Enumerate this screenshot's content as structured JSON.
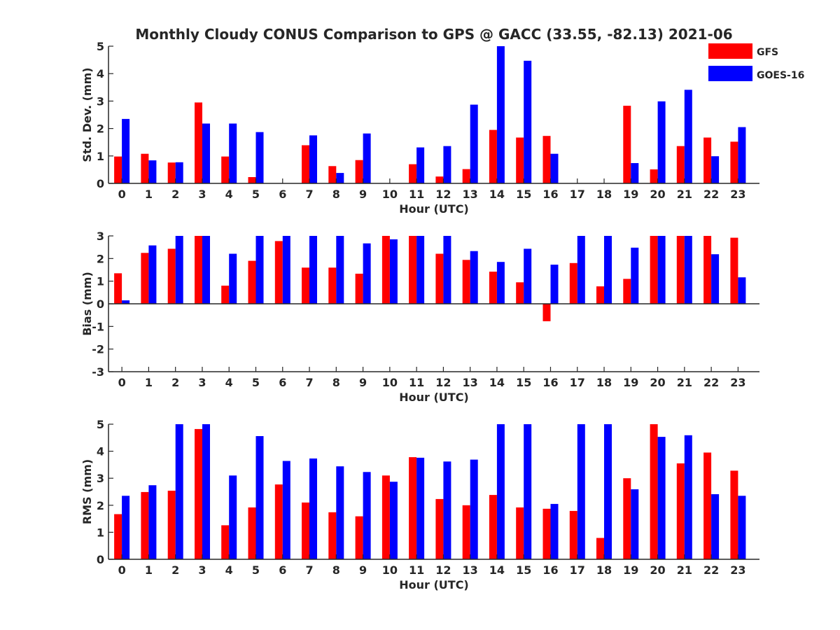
{
  "figure": {
    "title": "Monthly Cloudy CONUS Comparison to GPS @ GACC (33.55, -82.13) 2021-06",
    "legend": {
      "placement": "top-right",
      "entries": [
        {
          "name": "GFS",
          "color": "#ff0000"
        },
        {
          "name": "GOES-16",
          "color": "#0000ff"
        }
      ]
    }
  },
  "chart_data": [
    {
      "type": "bar",
      "title": "Monthly Cloudy CONUS Comparison to GPS @ GACC (33.55, -82.13) 2021-06",
      "xlabel": "Hour (UTC)",
      "ylabel": "Std. Dev. (mm)",
      "ylim": [
        0,
        5
      ],
      "yticks": [
        0,
        1,
        2,
        3,
        4,
        5
      ],
      "categories": [
        "0",
        "1",
        "2",
        "3",
        "4",
        "5",
        "6",
        "7",
        "8",
        "9",
        "10",
        "11",
        "12",
        "13",
        "14",
        "15",
        "16",
        "17",
        "18",
        "19",
        "20",
        "21",
        "22",
        "23"
      ],
      "grid": false,
      "legend": "top-right",
      "series": [
        {
          "name": "GFS",
          "color": "#ff0000",
          "values": [
            0.98,
            1.08,
            0.76,
            2.95,
            0.98,
            0.23,
            0,
            1.39,
            0.63,
            0.85,
            0,
            0.7,
            0.25,
            0.52,
            1.95,
            1.67,
            1.73,
            0,
            0,
            2.83,
            0.51,
            1.36,
            1.67,
            1.52
          ]
        },
        {
          "name": "GOES-16",
          "color": "#0000ff",
          "values": [
            2.35,
            0.84,
            0.77,
            2.18,
            2.18,
            1.87,
            0,
            1.75,
            0.38,
            1.82,
            0,
            1.31,
            1.36,
            2.87,
            5.0,
            4.47,
            1.08,
            0,
            0,
            0.74,
            2.99,
            3.41,
            0.99,
            2.05
          ]
        }
      ]
    },
    {
      "type": "bar",
      "xlabel": "Hour (UTC)",
      "ylabel": "Bias (mm)",
      "ylim": [
        -3,
        3
      ],
      "yticks": [
        -3,
        -2,
        -1,
        0,
        1,
        2,
        3
      ],
      "categories": [
        "0",
        "1",
        "2",
        "3",
        "4",
        "5",
        "6",
        "7",
        "8",
        "9",
        "10",
        "11",
        "12",
        "13",
        "14",
        "15",
        "16",
        "17",
        "18",
        "19",
        "20",
        "21",
        "22",
        "23"
      ],
      "grid": false,
      "series": [
        {
          "name": "GFS",
          "color": "#ff0000",
          "values": [
            1.35,
            2.25,
            2.43,
            3.0,
            0.8,
            1.9,
            2.77,
            1.6,
            1.6,
            1.33,
            3.0,
            3.0,
            2.21,
            1.94,
            1.42,
            0.95,
            -0.77,
            1.8,
            0.77,
            1.1,
            3.0,
            3.0,
            3.0,
            2.92
          ]
        },
        {
          "name": "GOES-16",
          "color": "#0000ff",
          "values": [
            0.15,
            2.58,
            3.0,
            3.0,
            2.21,
            3.0,
            3.0,
            3.0,
            3.0,
            2.67,
            2.85,
            3.0,
            3.0,
            2.33,
            1.85,
            2.43,
            1.73,
            3.0,
            3.0,
            2.48,
            3.0,
            3.0,
            2.19,
            1.17
          ]
        }
      ]
    },
    {
      "type": "bar",
      "xlabel": "Hour (UTC)",
      "ylabel": "RMS (mm)",
      "ylim": [
        0,
        5
      ],
      "yticks": [
        0,
        1,
        2,
        3,
        4,
        5
      ],
      "categories": [
        "0",
        "1",
        "2",
        "3",
        "4",
        "5",
        "6",
        "7",
        "8",
        "9",
        "10",
        "11",
        "12",
        "13",
        "14",
        "15",
        "16",
        "17",
        "18",
        "19",
        "20",
        "21",
        "22",
        "23"
      ],
      "grid": false,
      "series": [
        {
          "name": "GFS",
          "color": "#ff0000",
          "values": [
            1.67,
            2.49,
            2.54,
            4.82,
            1.26,
            1.92,
            2.77,
            2.1,
            1.74,
            1.59,
            3.1,
            3.78,
            2.23,
            2.0,
            2.38,
            1.92,
            1.87,
            1.79,
            0.79,
            3.0,
            5.0,
            3.55,
            3.95,
            3.28
          ]
        },
        {
          "name": "GOES-16",
          "color": "#0000ff",
          "values": [
            2.35,
            2.74,
            5.0,
            5.0,
            3.1,
            4.56,
            3.64,
            3.73,
            3.44,
            3.23,
            2.87,
            3.76,
            3.62,
            3.69,
            5.0,
            5.0,
            2.05,
            5.0,
            5.0,
            2.59,
            4.53,
            4.59,
            2.41,
            2.35
          ]
        }
      ]
    }
  ]
}
